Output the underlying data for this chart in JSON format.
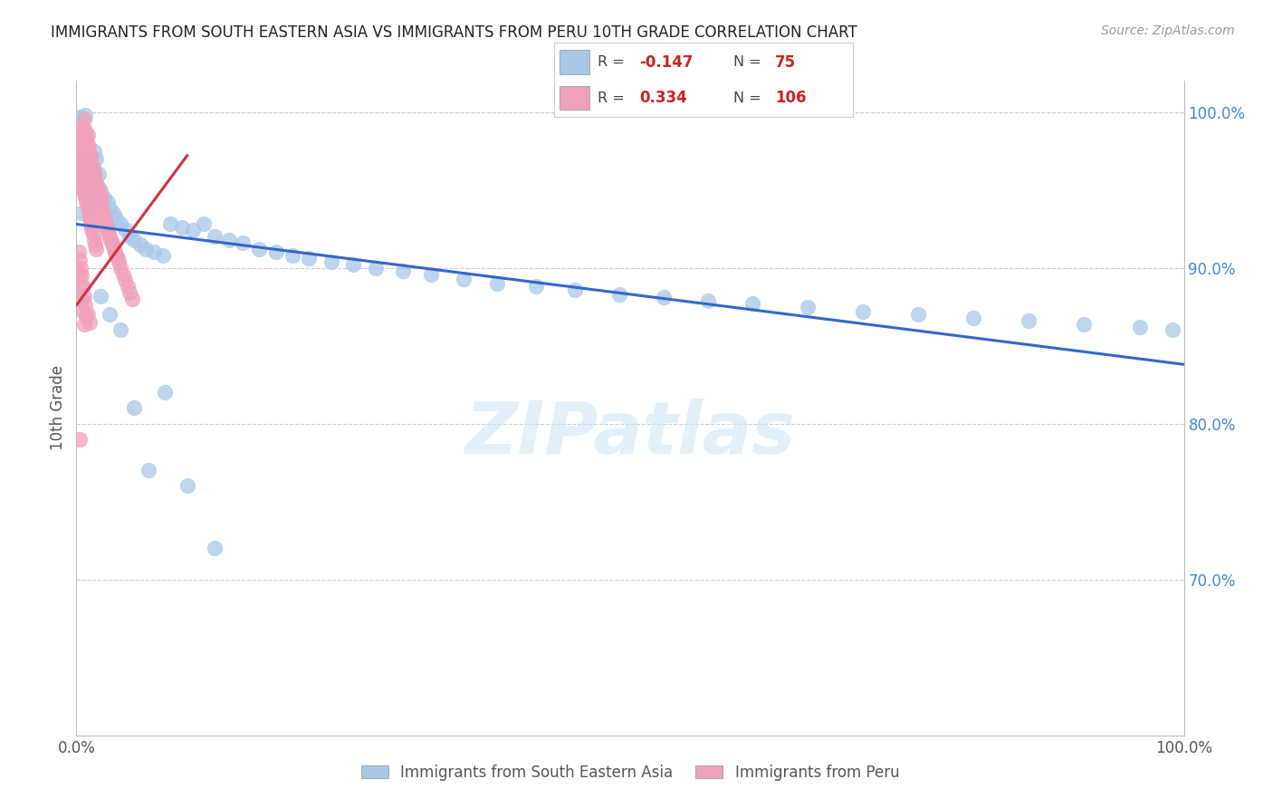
{
  "title": "IMMIGRANTS FROM SOUTH EASTERN ASIA VS IMMIGRANTS FROM PERU 10TH GRADE CORRELATION CHART",
  "source": "Source: ZipAtlas.com",
  "ylabel": "10th Grade",
  "right_yticks": [
    "100.0%",
    "90.0%",
    "80.0%",
    "70.0%"
  ],
  "right_ytick_vals": [
    1.0,
    0.9,
    0.8,
    0.7
  ],
  "legend_blue_R": "-0.147",
  "legend_blue_N": "75",
  "legend_pink_R": "0.334",
  "legend_pink_N": "106",
  "blue_color": "#a8c8e8",
  "pink_color": "#f0a0b8",
  "blue_line_color": "#3366cc",
  "pink_line_color": "#cc3344",
  "watermark": "ZIPatlas",
  "xlim": [
    0.0,
    1.0
  ],
  "ylim": [
    0.6,
    1.02
  ],
  "grid_yticks": [
    0.7,
    0.8,
    0.9,
    1.0
  ],
  "blue_regression_x0": 0.0,
  "blue_regression_x1": 1.0,
  "blue_regression_y0": 0.928,
  "blue_regression_y1": 0.838,
  "pink_regression_x0": 0.0,
  "pink_regression_x1": 0.1,
  "pink_regression_y0": 0.876,
  "pink_regression_y1": 0.972,
  "blue_scatter_x": [
    0.003,
    0.004,
    0.005,
    0.006,
    0.007,
    0.008,
    0.009,
    0.01,
    0.011,
    0.012,
    0.013,
    0.014,
    0.015,
    0.016,
    0.018,
    0.02,
    0.022,
    0.025,
    0.028,
    0.03,
    0.033,
    0.036,
    0.04,
    0.044,
    0.048,
    0.052,
    0.058,
    0.063,
    0.07,
    0.078,
    0.085,
    0.095,
    0.105,
    0.115,
    0.125,
    0.138,
    0.15,
    0.165,
    0.18,
    0.195,
    0.21,
    0.23,
    0.25,
    0.27,
    0.295,
    0.32,
    0.35,
    0.38,
    0.415,
    0.45,
    0.49,
    0.53,
    0.57,
    0.61,
    0.66,
    0.71,
    0.76,
    0.81,
    0.86,
    0.91,
    0.96,
    0.99,
    0.005,
    0.01,
    0.015,
    0.022,
    0.03,
    0.04,
    0.052,
    0.065,
    0.08,
    0.1,
    0.125,
    0.004,
    0.008
  ],
  "blue_scatter_y": [
    0.97,
    0.96,
    0.958,
    0.955,
    0.95,
    0.948,
    0.945,
    0.942,
    0.94,
    0.938,
    0.955,
    0.96,
    0.965,
    0.975,
    0.97,
    0.96,
    0.95,
    0.945,
    0.942,
    0.938,
    0.935,
    0.932,
    0.928,
    0.925,
    0.92,
    0.918,
    0.915,
    0.912,
    0.91,
    0.908,
    0.928,
    0.926,
    0.924,
    0.928,
    0.92,
    0.918,
    0.916,
    0.912,
    0.91,
    0.908,
    0.906,
    0.904,
    0.902,
    0.9,
    0.898,
    0.896,
    0.893,
    0.89,
    0.888,
    0.886,
    0.883,
    0.881,
    0.879,
    0.877,
    0.875,
    0.872,
    0.87,
    0.868,
    0.866,
    0.864,
    0.862,
    0.86,
    0.935,
    0.96,
    0.93,
    0.882,
    0.87,
    0.86,
    0.81,
    0.77,
    0.82,
    0.76,
    0.72,
    0.997,
    0.998
  ],
  "pink_scatter_x": [
    0.002,
    0.003,
    0.004,
    0.005,
    0.006,
    0.006,
    0.007,
    0.007,
    0.008,
    0.008,
    0.009,
    0.009,
    0.01,
    0.01,
    0.011,
    0.011,
    0.012,
    0.012,
    0.013,
    0.013,
    0.014,
    0.014,
    0.015,
    0.015,
    0.016,
    0.016,
    0.017,
    0.017,
    0.018,
    0.018,
    0.019,
    0.019,
    0.02,
    0.02,
    0.021,
    0.021,
    0.022,
    0.022,
    0.023,
    0.024,
    0.025,
    0.026,
    0.027,
    0.028,
    0.029,
    0.03,
    0.031,
    0.032,
    0.033,
    0.034,
    0.035,
    0.036,
    0.037,
    0.038,
    0.04,
    0.042,
    0.044,
    0.046,
    0.048,
    0.05,
    0.003,
    0.004,
    0.005,
    0.006,
    0.007,
    0.008,
    0.009,
    0.01,
    0.011,
    0.012,
    0.013,
    0.014,
    0.015,
    0.016,
    0.017,
    0.018,
    0.002,
    0.003,
    0.004,
    0.005,
    0.006,
    0.007,
    0.008,
    0.009,
    0.01,
    0.011,
    0.012,
    0.013,
    0.014,
    0.015,
    0.002,
    0.003,
    0.004,
    0.005,
    0.006,
    0.007,
    0.008,
    0.009,
    0.003,
    0.004,
    0.005,
    0.006,
    0.007,
    0.003,
    0.01,
    0.012
  ],
  "pink_scatter_y": [
    0.975,
    0.97,
    0.968,
    0.965,
    0.98,
    0.99,
    0.975,
    0.995,
    0.988,
    0.985,
    0.982,
    0.978,
    0.976,
    0.985,
    0.972,
    0.978,
    0.97,
    0.965,
    0.968,
    0.972,
    0.965,
    0.96,
    0.958,
    0.963,
    0.955,
    0.96,
    0.952,
    0.957,
    0.95,
    0.955,
    0.948,
    0.952,
    0.945,
    0.95,
    0.942,
    0.947,
    0.94,
    0.945,
    0.938,
    0.935,
    0.932,
    0.93,
    0.927,
    0.925,
    0.922,
    0.92,
    0.918,
    0.916,
    0.914,
    0.912,
    0.91,
    0.908,
    0.906,
    0.904,
    0.9,
    0.896,
    0.892,
    0.888,
    0.884,
    0.88,
    0.962,
    0.958,
    0.955,
    0.952,
    0.948,
    0.945,
    0.942,
    0.938,
    0.935,
    0.932,
    0.928,
    0.925,
    0.922,
    0.918,
    0.915,
    0.912,
    0.985,
    0.982,
    0.98,
    0.978,
    0.975,
    0.972,
    0.97,
    0.968,
    0.965,
    0.962,
    0.96,
    0.958,
    0.955,
    0.952,
    0.91,
    0.905,
    0.9,
    0.895,
    0.888,
    0.882,
    0.876,
    0.869,
    0.895,
    0.888,
    0.88,
    0.872,
    0.864,
    0.79,
    0.87,
    0.865
  ]
}
